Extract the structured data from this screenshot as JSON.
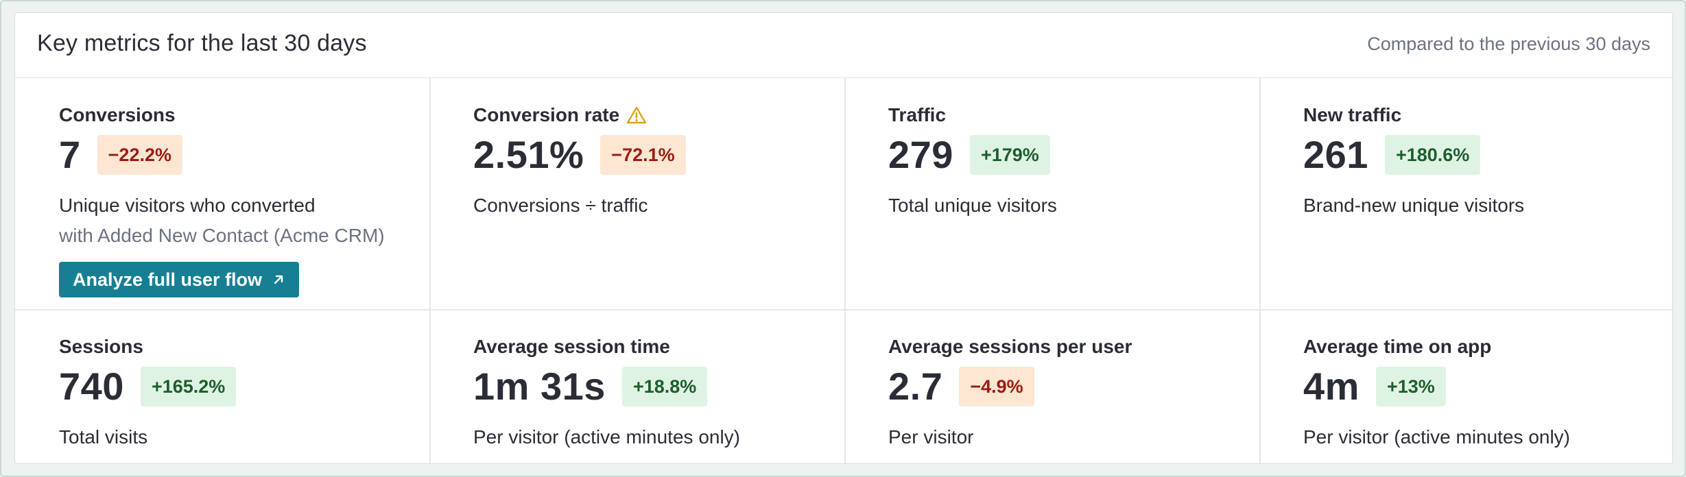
{
  "header": {
    "title": "Key metrics for the last 30 days",
    "comparison": "Compared to the previous 30 days"
  },
  "metrics": [
    {
      "label": "Conversions",
      "value": "7",
      "change": "−22.2%",
      "trend": "negative",
      "description": "Unique visitors who converted",
      "sub": "with Added New Contact (Acme CRM)",
      "action": "Analyze full user flow",
      "action_icon": "arrow-up-right-icon"
    },
    {
      "label": "Conversion rate",
      "label_icon": "warning-icon",
      "value": "2.51%",
      "change": "−72.1%",
      "trend": "negative",
      "description": "Conversions ÷ traffic"
    },
    {
      "label": "Traffic",
      "value": "279",
      "change": "+179%",
      "trend": "positive",
      "description": "Total unique visitors"
    },
    {
      "label": "New traffic",
      "value": "261",
      "change": "+180.6%",
      "trend": "positive",
      "description": "Brand-new unique visitors"
    },
    {
      "label": "Sessions",
      "value": "740",
      "change": "+165.2%",
      "trend": "positive",
      "description": "Total visits"
    },
    {
      "label": "Average session time",
      "value": "1m 31s",
      "change": "+18.8%",
      "trend": "positive",
      "description": "Per visitor (active minutes only)"
    },
    {
      "label": "Average sessions per user",
      "value": "2.7",
      "change": "−4.9%",
      "trend": "negative",
      "description": "Per visitor"
    },
    {
      "label": "Average time on app",
      "value": "4m",
      "change": "+13%",
      "trend": "positive",
      "description": "Per visitor (active minutes only)"
    }
  ],
  "colors": {
    "accent_button": "#167f94",
    "negative_badge_bg": "#fde6d2",
    "negative_badge_text": "#9a1d14",
    "positive_badge_bg": "#dff3e4",
    "positive_badge_text": "#1c5e2e",
    "warning_icon": "#e0a11b"
  }
}
